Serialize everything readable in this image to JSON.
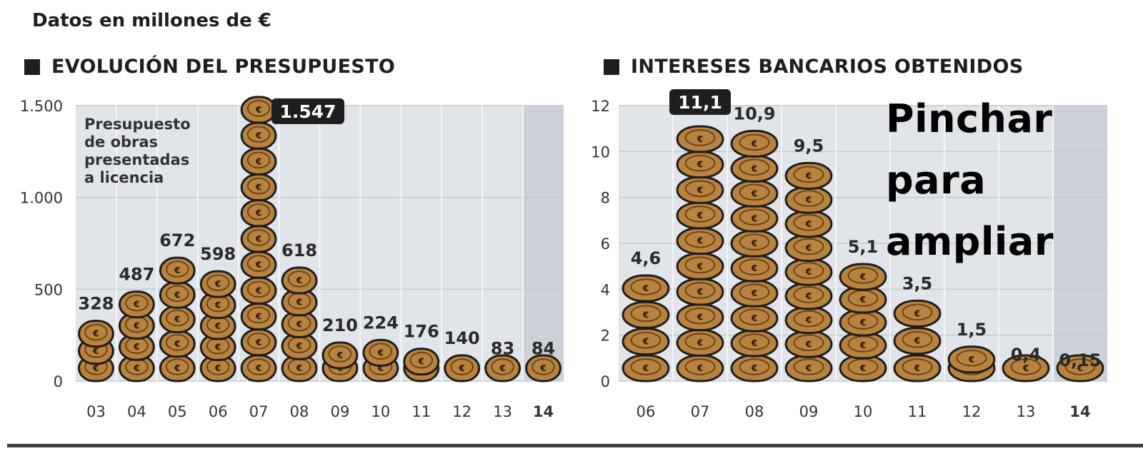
{
  "header": "Datos en millones de €",
  "overlay_text": [
    "Pinchar para",
    "ampliar"
  ],
  "colors": {
    "coin_fill": "#b8823f",
    "coin_edge": "#1e1e1e",
    "plot_bg": "#e1e5e9",
    "plot_highlight": "#ccd2d8",
    "label_box": "#1e1e1e"
  },
  "icons": [
    "euro-coin-icon",
    "title-square-icon"
  ],
  "chart_data": [
    {
      "type": "bar",
      "title": "EVOLUCIÓN DEL PRESUPUESTO",
      "annotation": [
        "Presupuesto",
        "de obras",
        "presentadas",
        "a licencia"
      ],
      "categories": [
        "03",
        "04",
        "05",
        "06",
        "07",
        "08",
        "09",
        "10",
        "11",
        "12",
        "13",
        "14"
      ],
      "values": [
        328,
        487,
        672,
        598,
        1547,
        618,
        210,
        224,
        176,
        140,
        83,
        84
      ],
      "value_labels": [
        "328",
        "487",
        "672",
        "598",
        "1.547",
        "618",
        "210",
        "224",
        "176",
        "140",
        "83",
        "84"
      ],
      "ylim": [
        0,
        1500
      ],
      "yticks": [
        0,
        500,
        1000,
        1500
      ],
      "ytick_labels": [
        "0",
        "500",
        "1.000",
        "1.500"
      ],
      "highlight_index": 4,
      "bold_category": "14",
      "grid": true
    },
    {
      "type": "bar",
      "title": "INTERESES BANCARIOS OBTENIDOS",
      "categories": [
        "06",
        "07",
        "08",
        "09",
        "10",
        "11",
        "12",
        "13",
        "14"
      ],
      "values": [
        4.6,
        11.1,
        10.9,
        9.5,
        5.1,
        3.5,
        1.5,
        0.4,
        0.15
      ],
      "value_labels": [
        "4,6",
        "11,1",
        "10,9",
        "9,5",
        "5,1",
        "3,5",
        "1,5",
        "0,4",
        "0,15"
      ],
      "ylim": [
        0,
        12
      ],
      "yticks": [
        0,
        2,
        4,
        6,
        8,
        10,
        12
      ],
      "ytick_labels": [
        "0",
        "2",
        "4",
        "6",
        "8",
        "10",
        "12"
      ],
      "highlight_index": 1,
      "bold_category": "14",
      "grid": true
    }
  ]
}
